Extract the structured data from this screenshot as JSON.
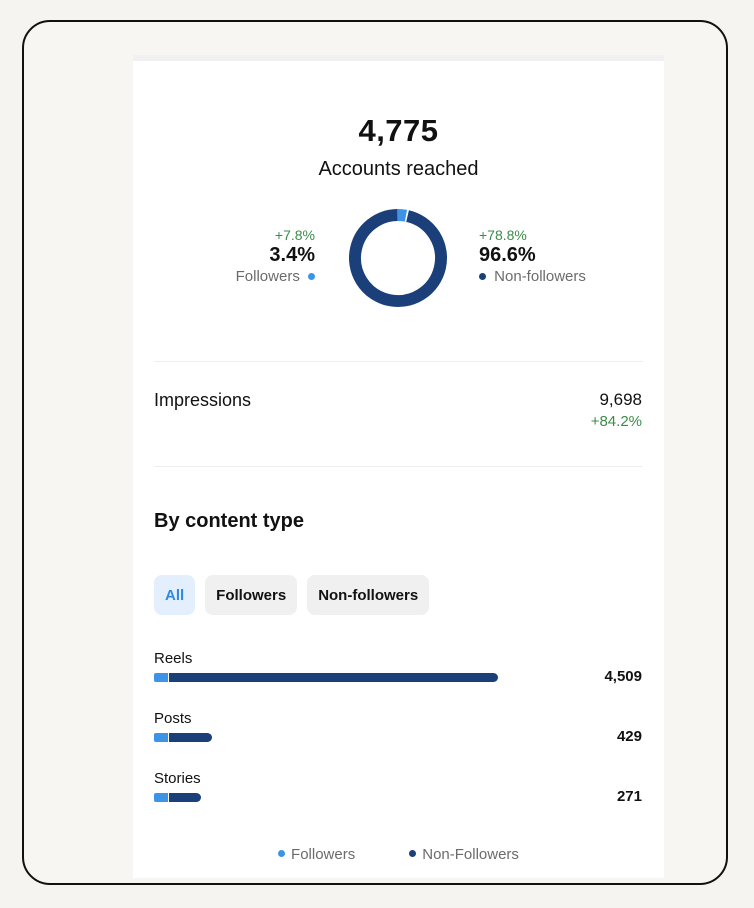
{
  "reach": {
    "total": "4,775",
    "caption": "Accounts reached",
    "followers": {
      "delta": "+7.8%",
      "pct": "3.4%",
      "label": "Followers",
      "share": 0.034
    },
    "non_followers": {
      "delta": "+78.8%",
      "pct": "96.6%",
      "label": "Non-followers",
      "share": 0.966
    }
  },
  "impressions": {
    "label": "Impressions",
    "value": "9,698",
    "delta": "+84.2%"
  },
  "content": {
    "title": "By content type",
    "filters": [
      "All",
      "Followers",
      "Non-followers"
    ],
    "active_filter": "All",
    "rows": [
      {
        "name": "Reels",
        "value": "4,509",
        "number": 4509
      },
      {
        "name": "Posts",
        "value": "429",
        "number": 429
      },
      {
        "name": "Stories",
        "value": "271",
        "number": 271
      }
    ],
    "legend": [
      "Followers",
      "Non-Followers"
    ]
  },
  "colors": {
    "followers": "#3d94e6",
    "non_followers": "#1b3f78",
    "positive": "#3d8b4a",
    "active_chip": "#e3effc"
  }
}
